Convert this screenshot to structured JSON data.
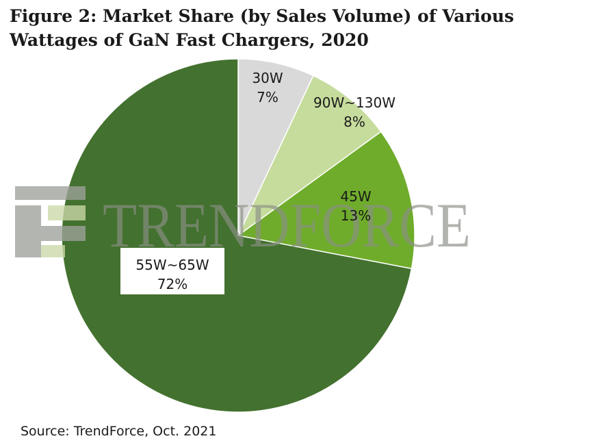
{
  "title": "Figure 2: Market Share (by Sales Volume) of Various Wattages of GaN Fast Chargers, 2020",
  "source": "Source: TrendForce, Oct. 2021",
  "watermark": {
    "text": "TRENDFORCE",
    "logo_icon": "trendforce-logo-icon",
    "logo_color": "#9ea29a",
    "logo_accent": "#cbd9a8"
  },
  "chart_data": {
    "type": "pie",
    "title": "Figure 2: Market Share (by Sales Volume) of Various Wattages of GaN Fast Chargers, 2020",
    "start_angle": "12 o'clock, clockwise",
    "slices": [
      {
        "label": "30W",
        "value": 7,
        "display": "7%",
        "color": "#d9d9d9"
      },
      {
        "label": "90W~130W",
        "value": 8,
        "display": "8%",
        "color": "#c6dc9d"
      },
      {
        "label": "45W",
        "value": 13,
        "display": "13%",
        "color": "#6fac2b"
      },
      {
        "label": "55W~65W",
        "value": 72,
        "display": "72%",
        "color": "#43712f"
      }
    ]
  }
}
